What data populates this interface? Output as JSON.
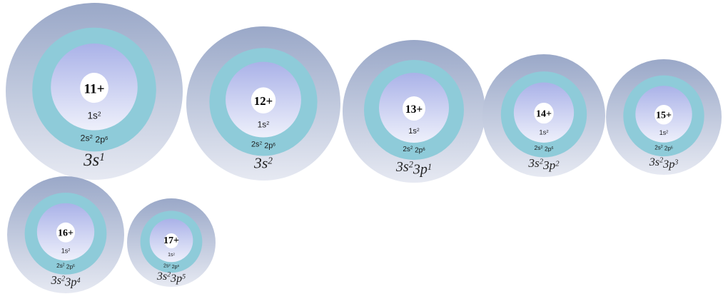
{
  "atoms": [
    {
      "charge": "11+",
      "inner_shell": {
        "base": "1s",
        "exp": "2"
      },
      "middle_shell": [
        {
          "base": "2s",
          "exp": "2"
        },
        {
          "base": "2p",
          "exp": "6"
        }
      ],
      "valence": [
        {
          "base": "3s",
          "exp": "1"
        }
      ]
    },
    {
      "charge": "12+",
      "inner_shell": {
        "base": "1s",
        "exp": "2"
      },
      "middle_shell": [
        {
          "base": "2s",
          "exp": "2"
        },
        {
          "base": "2p",
          "exp": "6"
        }
      ],
      "valence": [
        {
          "base": "3s",
          "exp": "2"
        }
      ]
    },
    {
      "charge": "13+",
      "inner_shell": {
        "base": "1s",
        "exp": "2"
      },
      "middle_shell": [
        {
          "base": "2s",
          "exp": "2"
        },
        {
          "base": "2p",
          "exp": "6"
        }
      ],
      "valence": [
        {
          "base": "3s",
          "exp": "2"
        },
        {
          "base": "3p",
          "exp": "1"
        }
      ]
    },
    {
      "charge": "14+",
      "inner_shell": {
        "base": "1s",
        "exp": "2"
      },
      "middle_shell": [
        {
          "base": "2s",
          "exp": "2"
        },
        {
          "base": "2p",
          "exp": "6"
        }
      ],
      "valence": [
        {
          "base": "3s",
          "exp": "2"
        },
        {
          "base": "3p",
          "exp": "2"
        }
      ]
    },
    {
      "charge": "15+",
      "inner_shell": {
        "base": "1s",
        "exp": "2"
      },
      "middle_shell": [
        {
          "base": "2s",
          "exp": "2"
        },
        {
          "base": "2p",
          "exp": "6"
        }
      ],
      "valence": [
        {
          "base": "3s",
          "exp": "2"
        },
        {
          "base": "3p",
          "exp": "3"
        }
      ]
    },
    {
      "charge": "16+",
      "inner_shell": {
        "base": "1s",
        "exp": "2"
      },
      "middle_shell": [
        {
          "base": "2s",
          "exp": "2"
        },
        {
          "base": "2p",
          "exp": "6"
        }
      ],
      "valence": [
        {
          "base": "3s",
          "exp": "2"
        },
        {
          "base": "3p",
          "exp": "4"
        }
      ]
    },
    {
      "charge": "17+",
      "inner_shell": {
        "base": "1s",
        "exp": "2"
      },
      "middle_shell": [
        {
          "base": "2s",
          "exp": "2"
        },
        {
          "base": "2p",
          "exp": "6"
        }
      ],
      "valence": [
        {
          "base": "3s",
          "exp": "2"
        },
        {
          "base": "3p",
          "exp": "5"
        }
      ]
    }
  ],
  "colors": {
    "outer_shell_top": "#9aa8c8",
    "outer_shell_bottom": "#e6e9f2",
    "middle_shell": "#8ecbd9",
    "inner_shell_top": "#aab2e8",
    "inner_shell_bottom": "#eef0fb",
    "nucleus": "#ffffff"
  }
}
